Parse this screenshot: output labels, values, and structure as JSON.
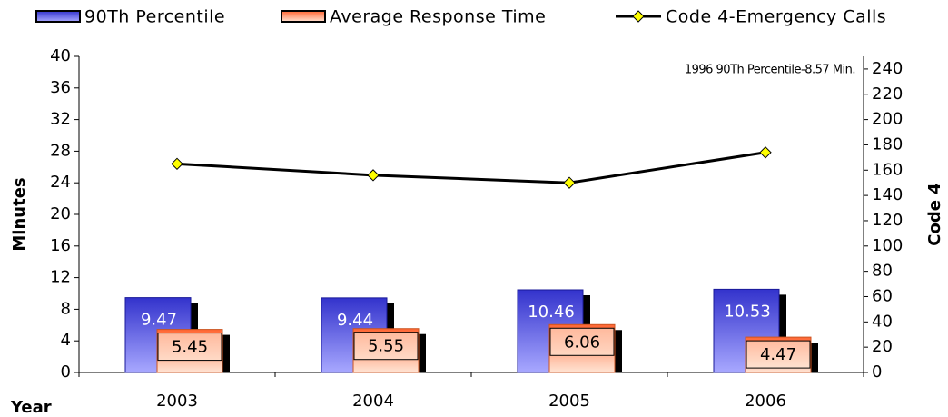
{
  "chart_data": {
    "type": "bar-line",
    "categories": [
      "2003",
      "2004",
      "2005",
      "2006"
    ],
    "series": [
      {
        "name": "90Th Percentile",
        "type": "bar",
        "color": "#3333cc",
        "values": [
          9.47,
          9.44,
          10.46,
          10.53
        ]
      },
      {
        "name": "Average Response Time",
        "type": "bar",
        "color": "#ff6633",
        "values": [
          5.45,
          5.55,
          6.06,
          4.47
        ]
      },
      {
        "name": "Code 4-Emergency Calls",
        "type": "line",
        "axis": "y2",
        "color": "#000000",
        "marker_color": "#ffff00",
        "values": [
          165,
          156,
          150,
          174
        ]
      }
    ],
    "ylabel": "Minutes",
    "y2label": "Code 4",
    "xlabel": "Year",
    "annotation": "1996 90Th Percentile-8.57 Min.",
    "ylim": [
      0,
      40
    ],
    "yticks": [
      0,
      4,
      8,
      12,
      16,
      20,
      24,
      28,
      32,
      36,
      40
    ],
    "y2lim": [
      0,
      250
    ],
    "y2ticks": [
      0,
      20,
      40,
      60,
      80,
      100,
      120,
      140,
      160,
      180,
      200,
      220,
      240
    ],
    "legend": "top"
  }
}
